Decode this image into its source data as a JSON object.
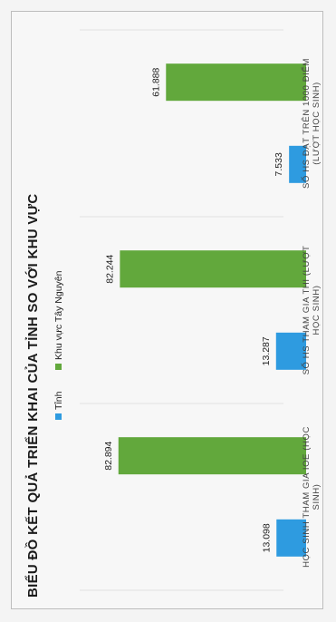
{
  "chart_data": {
    "type": "bar",
    "orientation": "horizontal",
    "title": "BIỂU ĐỒ KẾT QUẢ TRIỂN KHAI CỦA TỈNH SO VỚI KHU VỰC",
    "categories": [
      [
        "HỌC SINH THAM GIA IOE (HỌC",
        "SINH)"
      ],
      [
        "SỐ HS THAM GIA THI (LƯỢT",
        "HỌC SINH)"
      ],
      [
        "SỐ HS ĐẠT TRÊN 1000 ĐIỂM",
        "(LƯỢT HỌC SINH)"
      ]
    ],
    "series": [
      {
        "name": "Tỉnh",
        "color": "#2e9be0",
        "values": [
          13098,
          13287,
          7533
        ],
        "labels": [
          "13.098",
          "13.287",
          "7.533"
        ]
      },
      {
        "name": "Khu vực Tây Nguyên",
        "color": "#62a83c",
        "values": [
          82894,
          82244,
          61888
        ],
        "labels": [
          "82.894",
          "82.244",
          "61.888"
        ]
      }
    ],
    "xlim": [
      0,
      90000
    ],
    "legend_position": "top",
    "grid": true
  }
}
